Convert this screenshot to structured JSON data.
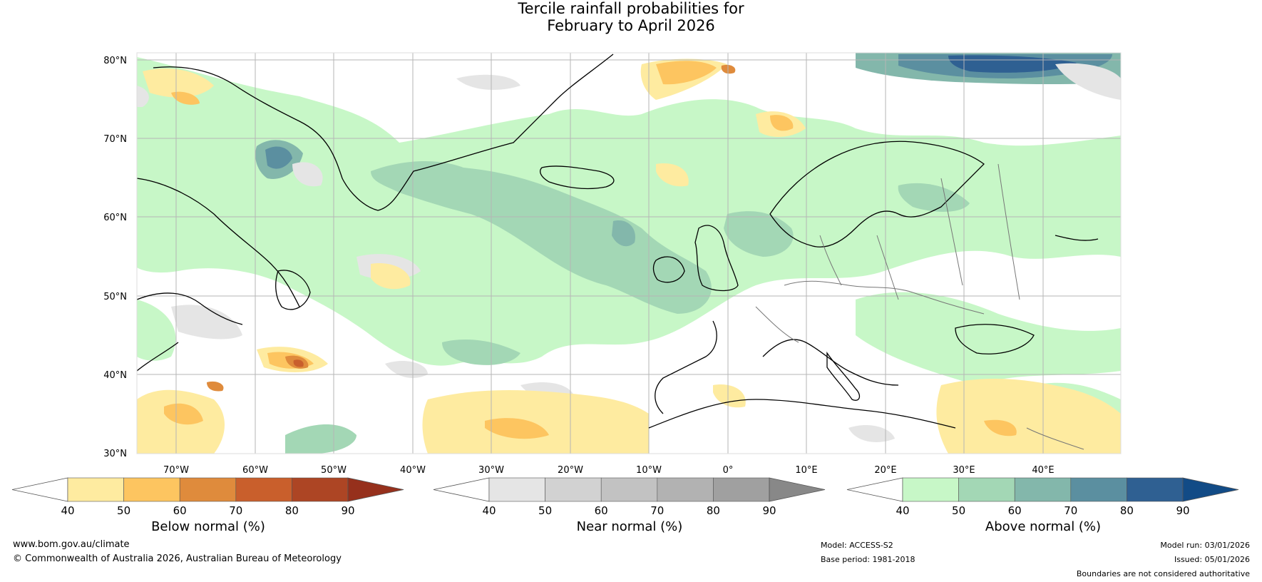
{
  "title": {
    "line1": "Tercile rainfall probabilities for",
    "line2": "February to April 2026"
  },
  "map": {
    "lat_labels": [
      "80°N",
      "70°N",
      "60°N",
      "50°N",
      "40°N",
      "30°N"
    ],
    "lon_labels": [
      "70°W",
      "60°W",
      "50°W",
      "40°W",
      "30°W",
      "20°W",
      "10°W",
      "0°",
      "10°E",
      "20°E",
      "30°E",
      "40°E"
    ],
    "legend_tick_values": [
      "40",
      "50",
      "60",
      "70",
      "80",
      "90"
    ]
  },
  "colorbars": {
    "below": {
      "label": "Below normal (%)",
      "colors": [
        "#ffffff",
        "#feeba0",
        "#fdc560",
        "#df8b3c",
        "#c95f2c",
        "#ad4524",
        "#96301c"
      ]
    },
    "near": {
      "label": "Near normal (%)",
      "colors": [
        "#ffffff",
        "#e5e5e5",
        "#d2d2d2",
        "#c2c2c2",
        "#b2b2b2",
        "#a0a0a0",
        "#888888"
      ]
    },
    "above": {
      "label": "Above normal (%)",
      "colors": [
        "#ffffff",
        "#c7f7c7",
        "#a3d7b5",
        "#83b7ab",
        "#5b8fa0",
        "#2f6092",
        "#124b86"
      ]
    }
  },
  "footer": {
    "website": "www.bom.gov.au/climate",
    "copyright": "© Commonwealth of Australia 2026, Australian Bureau of Meteorology",
    "model": "Model: ACCESS-S2",
    "base_period": "Base period: 1981-2018",
    "model_run": "Model run: 03/01/2026",
    "issued": "Issued: 05/01/2026",
    "disclaimer": "Boundaries are not considered authoritative"
  }
}
